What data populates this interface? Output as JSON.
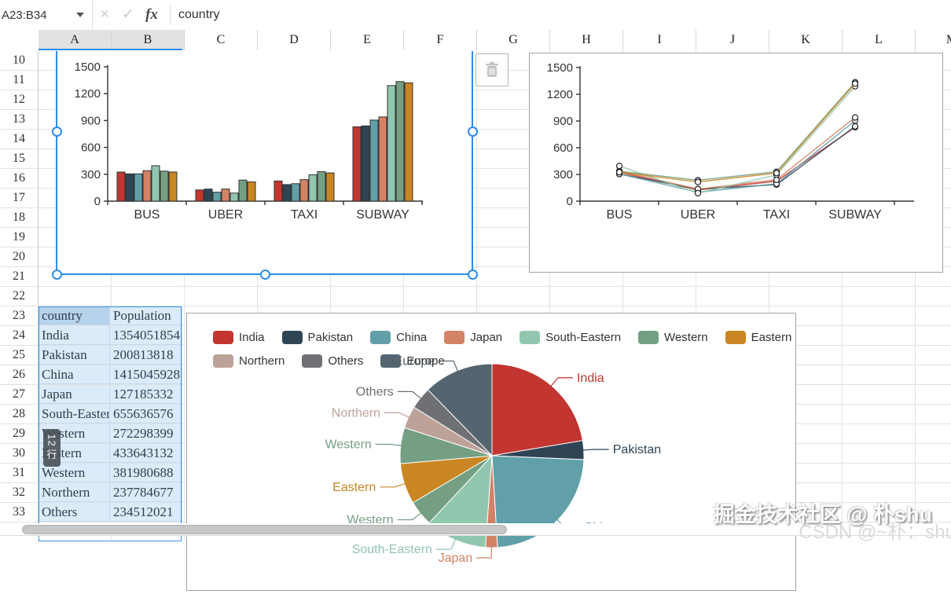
{
  "formula_bar": {
    "name_box": "A23:B34",
    "cancel_label": "×",
    "confirm_label": "✓",
    "fx_label": "fx",
    "value": "country"
  },
  "grid": {
    "column_headers": [
      "A",
      "B",
      "C",
      "D",
      "E",
      "F",
      "G",
      "H",
      "I",
      "J",
      "K",
      "L",
      "M"
    ],
    "selected_columns": [
      "A",
      "B"
    ],
    "row_start": 10,
    "row_end": 33
  },
  "selection_tooltip": {
    "count": "12",
    "unit": "行"
  },
  "sheet_table": {
    "columns": [
      "country",
      "Population"
    ],
    "rows": [
      [
        "India",
        "1354051854"
      ],
      [
        "Pakistan",
        "200813818"
      ],
      [
        "China",
        "1415045928"
      ],
      [
        "Japan",
        "127185332"
      ],
      [
        "South-Eastern",
        "655636576"
      ],
      [
        "Western",
        "272298399"
      ],
      [
        "Eastern",
        "433643132"
      ],
      [
        "Western",
        "381980688"
      ],
      [
        "Northern",
        "237784677"
      ],
      [
        "Others",
        "234512021"
      ]
    ]
  },
  "chart_data": [
    {
      "type": "bar",
      "title": "",
      "categories": [
        "BUS",
        "UBER",
        "TAXI",
        "SUBWAY"
      ],
      "ylim": [
        0,
        1500
      ],
      "yticks": [
        0,
        300,
        600,
        900,
        1200,
        1500
      ],
      "grid": false,
      "legend": "none",
      "series": [
        {
          "name": "",
          "color": "#c23531",
          "values": [
            325,
            125,
            225,
            830
          ]
        },
        {
          "name": "",
          "color": "#2f4554",
          "values": [
            305,
            135,
            185,
            840
          ]
        },
        {
          "name": "",
          "color": "#61a0a8",
          "values": [
            305,
            100,
            195,
            905
          ]
        },
        {
          "name": "",
          "color": "#d48265",
          "values": [
            340,
            135,
            240,
            940
          ]
        },
        {
          "name": "",
          "color": "#91c7ae",
          "values": [
            395,
            90,
            295,
            1290
          ]
        },
        {
          "name": "",
          "color": "#749f83",
          "values": [
            335,
            235,
            330,
            1335
          ]
        },
        {
          "name": "",
          "color": "#ca8622",
          "values": [
            325,
            215,
            315,
            1320
          ]
        }
      ]
    },
    {
      "type": "line",
      "title": "",
      "categories": [
        "BUS",
        "UBER",
        "TAXI",
        "SUBWAY"
      ],
      "ylim": [
        0,
        1500
      ],
      "yticks": [
        0,
        300,
        600,
        900,
        1200,
        1500
      ],
      "grid": false,
      "legend": "none",
      "marker": "hollow-circle",
      "series": [
        {
          "name": "",
          "color": "#c23531",
          "values": [
            325,
            125,
            225,
            830
          ]
        },
        {
          "name": "",
          "color": "#2f4554",
          "values": [
            305,
            135,
            185,
            840
          ]
        },
        {
          "name": "",
          "color": "#61a0a8",
          "values": [
            305,
            100,
            195,
            905
          ]
        },
        {
          "name": "",
          "color": "#d48265",
          "values": [
            340,
            135,
            240,
            940
          ]
        },
        {
          "name": "",
          "color": "#91c7ae",
          "values": [
            395,
            90,
            295,
            1290
          ]
        },
        {
          "name": "",
          "color": "#749f83",
          "values": [
            335,
            235,
            330,
            1335
          ]
        },
        {
          "name": "",
          "color": "#ca8622",
          "values": [
            325,
            215,
            315,
            1320
          ]
        }
      ]
    },
    {
      "type": "pie",
      "title": "",
      "legend_position": "top",
      "legend": [
        "India",
        "Pakistan",
        "China",
        "Japan",
        "South-Eastern",
        "Western",
        "Eastern",
        "Northern",
        "Others",
        "Europe"
      ],
      "slices": [
        {
          "name": "India",
          "value": 1354051854,
          "color": "#c23531"
        },
        {
          "name": "Pakistan",
          "value": 200813818,
          "color": "#2f4554"
        },
        {
          "name": "China",
          "value": 1415045928,
          "color": "#61a0a8"
        },
        {
          "name": "Japan",
          "value": 127185332,
          "color": "#d48265"
        },
        {
          "name": "South-Eastern",
          "value": 655636576,
          "color": "#91c7ae"
        },
        {
          "name": "Western",
          "value": 272298399,
          "color": "#749f83"
        },
        {
          "name": "Eastern",
          "value": 433643132,
          "color": "#ca8622"
        },
        {
          "name": "Western",
          "value": 381980688,
          "color": "#749f83"
        },
        {
          "name": "Northern",
          "value": 237784677,
          "color": "#bda29a"
        },
        {
          "name": "Others",
          "value": 234512021,
          "color": "#6e7074"
        },
        {
          "name": "Europe",
          "value": 742648010,
          "color": "#546570",
          "value_estimated": true
        }
      ]
    }
  ],
  "watermark": {
    "primary": "掘金技术社区 @ 朴shu",
    "secondary": "CSDN @~朴：shu"
  }
}
